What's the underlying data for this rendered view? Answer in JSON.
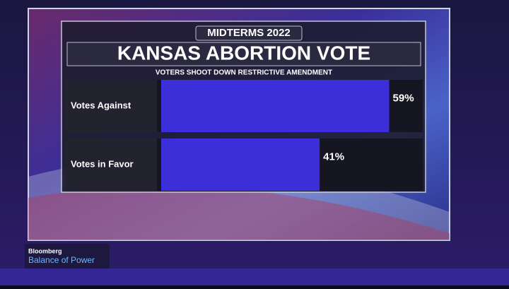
{
  "chart_data": {
    "type": "hbar",
    "header": "MIDTERMS 2022",
    "title": "KANSAS ABORTION VOTE",
    "subtitle": "VOTERS SHOOT DOWN RESTRICTIVE AMENDMENT",
    "categories": [
      "Votes Against",
      "Votes in Favor"
    ],
    "values": [
      59,
      41
    ],
    "value_labels": [
      "59%",
      "41%"
    ],
    "color": "#3c2ed8",
    "xlim": [
      0,
      60
    ]
  },
  "branding": {
    "network": "Bloomberg",
    "show": "Balance of Power"
  }
}
